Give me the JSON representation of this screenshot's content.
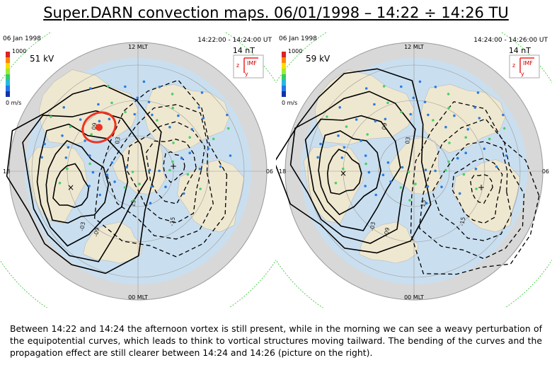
{
  "title": "Super.DARN convection maps. 06/01/1998 – 14:22 ÷ 14:26 TU",
  "maps": [
    {
      "date": "06 Jan 1998",
      "noon": "12 MLT",
      "time": "14:22:00 - 14:24:00 UT",
      "bt": "14 nT",
      "scale_max": "1000",
      "potential": "51 kV",
      "scale_min": "0 m/s",
      "imf": "IMF",
      "imf_z": "z",
      "imf_y": "y",
      "dusk": "18",
      "dawn": "06",
      "midnight": "00 MLT",
      "contour_labels": [
        "-09",
        "-03",
        "03",
        "09",
        "15",
        "-15"
      ]
    },
    {
      "date": "06 Jan 1998",
      "noon": "12 MLT",
      "time": "14:24:00 - 14:26:00 UT",
      "bt": "14 nT",
      "scale_max": "1000",
      "potential": "59 kV",
      "scale_min": "0 m/s",
      "imf": "IMF",
      "imf_z": "z",
      "imf_y": "y",
      "dusk": "18",
      "dawn": "06",
      "midnight": "00 MLT",
      "contour_labels": [
        "-09",
        "-03",
        "03",
        "09",
        "15",
        "-15"
      ]
    }
  ],
  "caption": "Between 14:22 and 14:24 the afternoon vortex is still present, while in the morning we can see a weavy perturbation of the equipotential curves, which leads to think to vortical structures moving tailward. The bending of the curves and the propagation effect are still clearer between 14:24 and 14:26 (picture on the right)."
}
